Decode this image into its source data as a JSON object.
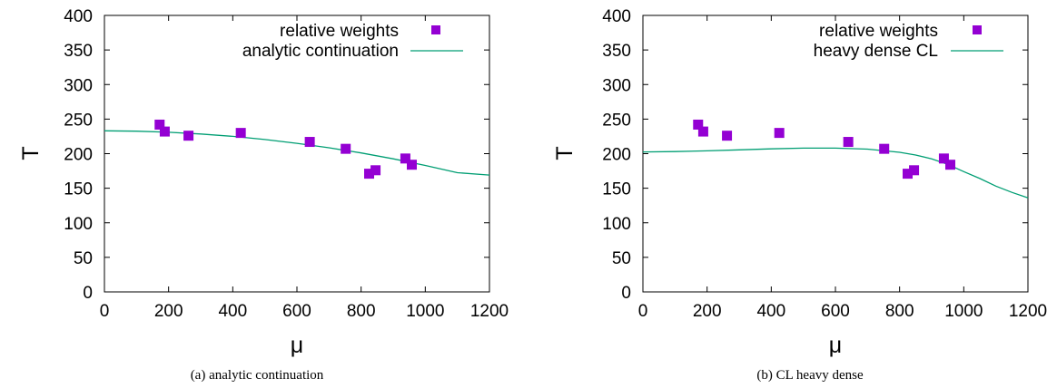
{
  "colors": {
    "marker": "#9400d3",
    "curve": "#009e73",
    "axis": "#000000"
  },
  "chart_data": [
    {
      "type": "scatter",
      "caption": "(a) analytic continuation",
      "xlabel": "μ",
      "ylabel": "T",
      "xlim": [
        0,
        1200
      ],
      "ylim": [
        0,
        400
      ],
      "xticks": [
        0,
        200,
        400,
        600,
        800,
        1000,
        1200
      ],
      "yticks": [
        0,
        50,
        100,
        150,
        200,
        250,
        300,
        350,
        400
      ],
      "legend_position": "top-right",
      "series": [
        {
          "name": "relative weights",
          "kind": "points",
          "marker": "square",
          "x": [
            172,
            188,
            262,
            425,
            640,
            752,
            825,
            845,
            938,
            958
          ],
          "y": [
            242,
            232,
            226,
            230,
            217,
            207,
            171,
            176,
            193,
            184
          ]
        },
        {
          "name": "analytic continuation",
          "kind": "line",
          "x": [
            0,
            100,
            200,
            300,
            400,
            500,
            600,
            700,
            800,
            900,
            1000,
            1100,
            1200
          ],
          "y": [
            233.0,
            232.5,
            231.0,
            228.5,
            225.0,
            220.5,
            215.0,
            208.5,
            201.0,
            192.5,
            183.0,
            172.5,
            169.0
          ]
        }
      ]
    },
    {
      "type": "scatter",
      "caption": "(b) CL heavy dense",
      "xlabel": "μ",
      "ylabel": "T",
      "xlim": [
        0,
        1200
      ],
      "ylim": [
        0,
        400
      ],
      "xticks": [
        0,
        200,
        400,
        600,
        800,
        1000,
        1200
      ],
      "yticks": [
        0,
        50,
        100,
        150,
        200,
        250,
        300,
        350,
        400
      ],
      "legend_position": "top-right",
      "series": [
        {
          "name": "relative weights",
          "kind": "points",
          "marker": "square",
          "x": [
            172,
            188,
            262,
            425,
            640,
            752,
            825,
            845,
            938,
            958
          ],
          "y": [
            242,
            232,
            226,
            230,
            217,
            207,
            171,
            176,
            193,
            184
          ]
        },
        {
          "name": "heavy dense CL",
          "kind": "line",
          "x": [
            0,
            100,
            200,
            300,
            400,
            500,
            600,
            700,
            800,
            850,
            900,
            950,
            1000,
            1050,
            1100,
            1150,
            1200
          ],
          "y": [
            202.5,
            203.0,
            204.0,
            205.5,
            207.0,
            208.0,
            208.0,
            206.5,
            202.0,
            198.0,
            192.5,
            184.5,
            174.0,
            164.0,
            153.0,
            144.0,
            136.0
          ]
        }
      ]
    }
  ]
}
